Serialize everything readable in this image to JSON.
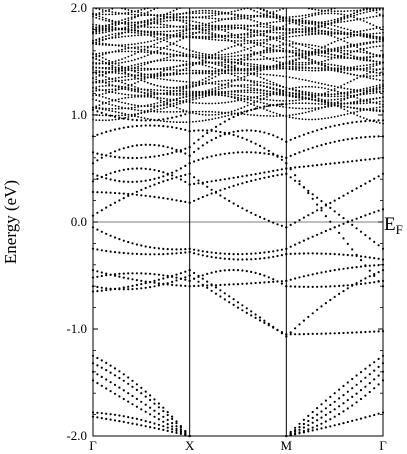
{
  "chart_data": {
    "type": "scatter",
    "title": "",
    "ylabel": "Energy (eV)",
    "xlabel": "",
    "ylim": [
      -2.0,
      2.0
    ],
    "y_ticks": [
      -2.0,
      -1.0,
      0.0,
      1.0,
      2.0
    ],
    "y_tick_labels": [
      "-2.0",
      "-1.0",
      "0.0",
      "1.0",
      "2.0"
    ],
    "x_range": [
      0,
      3
    ],
    "k_points": [
      {
        "label": "Γ",
        "x": 0
      },
      {
        "label": "X",
        "x": 1
      },
      {
        "label": "M",
        "x": 2
      },
      {
        "label": "Γ",
        "x": 3
      }
    ],
    "fermi_level": {
      "label": "E",
      "subscript": "F",
      "energy": 0.0
    },
    "grid": false,
    "series": [
      {
        "segment": "Γ-X",
        "values": [
          [
            0.0,
            0.06
          ],
          [
            0.5,
            0.3
          ],
          [
            1.0,
            0.45
          ]
        ]
      },
      {
        "segment": "Γ-X",
        "values": [
          [
            0.0,
            0.28
          ],
          [
            0.5,
            0.25
          ],
          [
            1.0,
            0.18
          ]
        ]
      },
      {
        "segment": "Γ-X",
        "values": [
          [
            0.0,
            0.38
          ],
          [
            0.5,
            0.5
          ],
          [
            1.0,
            0.35
          ]
        ]
      },
      {
        "segment": "Γ-X",
        "values": [
          [
            0.0,
            0.45
          ],
          [
            0.5,
            0.38
          ],
          [
            1.0,
            0.55
          ]
        ]
      },
      {
        "segment": "Γ-X",
        "values": [
          [
            0.0,
            0.55
          ],
          [
            0.5,
            0.72
          ],
          [
            1.0,
            0.62
          ]
        ]
      },
      {
        "segment": "Γ-X",
        "values": [
          [
            0.0,
            0.65
          ],
          [
            0.5,
            0.6
          ],
          [
            1.0,
            0.7
          ]
        ]
      },
      {
        "segment": "Γ-X",
        "values": [
          [
            0.0,
            0.8
          ],
          [
            0.5,
            0.9
          ],
          [
            1.0,
            0.85
          ]
        ]
      },
      {
        "segment": "Γ-X",
        "values": [
          [
            0.0,
            1.05
          ],
          [
            0.5,
            0.95
          ],
          [
            1.0,
            1.02
          ]
        ]
      },
      {
        "segment": "Γ-X",
        "values": [
          [
            0.0,
            -0.05
          ],
          [
            0.5,
            -0.22
          ],
          [
            1.0,
            -0.25
          ]
        ]
      },
      {
        "segment": "Γ-X",
        "values": [
          [
            0.0,
            -0.25
          ],
          [
            0.5,
            -0.3
          ],
          [
            1.0,
            -0.28
          ]
        ]
      },
      {
        "segment": "Γ-X",
        "values": [
          [
            0.0,
            -0.45
          ],
          [
            0.5,
            -0.55
          ],
          [
            1.0,
            -0.6
          ]
        ]
      },
      {
        "segment": "Γ-X",
        "values": [
          [
            0.0,
            -0.52
          ],
          [
            0.5,
            -0.48
          ],
          [
            1.0,
            -0.55
          ]
        ]
      },
      {
        "segment": "Γ-X",
        "values": [
          [
            0.0,
            -0.6
          ],
          [
            0.5,
            -0.62
          ],
          [
            1.0,
            -0.5
          ]
        ]
      },
      {
        "segment": "Γ-X",
        "values": [
          [
            0.0,
            -0.65
          ],
          [
            0.5,
            -0.58
          ],
          [
            1.0,
            -0.45
          ]
        ]
      },
      {
        "segment": "Γ-X",
        "values": [
          [
            0.0,
            -1.25
          ],
          [
            0.5,
            -1.55
          ],
          [
            1.0,
            -2.0
          ]
        ]
      },
      {
        "segment": "Γ-X",
        "values": [
          [
            0.0,
            -1.32
          ],
          [
            0.5,
            -1.6
          ],
          [
            1.0,
            -2.0
          ]
        ]
      },
      {
        "segment": "Γ-X",
        "values": [
          [
            0.0,
            -1.4
          ],
          [
            0.5,
            -1.68
          ],
          [
            1.0,
            -2.0
          ]
        ]
      },
      {
        "segment": "Γ-X",
        "values": [
          [
            0.0,
            -1.48
          ],
          [
            0.5,
            -1.75
          ],
          [
            1.0,
            -2.0
          ]
        ]
      },
      {
        "segment": "Γ-X",
        "values": [
          [
            0.0,
            -1.78
          ],
          [
            0.5,
            -1.85
          ],
          [
            1.0,
            -2.0
          ]
        ]
      },
      {
        "segment": "Γ-X",
        "values": [
          [
            0.0,
            -1.82
          ],
          [
            0.5,
            -1.9
          ],
          [
            1.0,
            -2.0
          ]
        ]
      },
      {
        "segment": "X-M",
        "values": [
          [
            1.0,
            0.45
          ],
          [
            1.5,
            0.15
          ],
          [
            2.0,
            -0.05
          ]
        ]
      },
      {
        "segment": "X-M",
        "values": [
          [
            1.0,
            0.18
          ],
          [
            1.5,
            0.35
          ],
          [
            2.0,
            0.45
          ]
        ]
      },
      {
        "segment": "X-M",
        "values": [
          [
            1.0,
            0.35
          ],
          [
            1.5,
            0.42
          ],
          [
            2.0,
            0.5
          ]
        ]
      },
      {
        "segment": "X-M",
        "values": [
          [
            1.0,
            0.55
          ],
          [
            1.5,
            0.65
          ],
          [
            2.0,
            0.6
          ]
        ]
      },
      {
        "segment": "X-M",
        "values": [
          [
            1.0,
            0.62
          ],
          [
            1.5,
            0.85
          ],
          [
            2.0,
            0.75
          ]
        ]
      },
      {
        "segment": "X-M",
        "values": [
          [
            1.0,
            0.7
          ],
          [
            1.5,
            1.0
          ],
          [
            2.0,
            1.1
          ]
        ]
      },
      {
        "segment": "X-M",
        "values": [
          [
            1.0,
            0.85
          ],
          [
            1.5,
            0.8
          ],
          [
            2.0,
            0.55
          ]
        ]
      },
      {
        "segment": "X-M",
        "values": [
          [
            1.0,
            -0.25
          ],
          [
            1.5,
            -0.3
          ],
          [
            2.0,
            -0.25
          ]
        ]
      },
      {
        "segment": "X-M",
        "values": [
          [
            1.0,
            -0.28
          ],
          [
            1.5,
            -0.35
          ],
          [
            2.0,
            -0.3
          ]
        ]
      },
      {
        "segment": "X-M",
        "values": [
          [
            1.0,
            -0.6
          ],
          [
            1.5,
            -0.58
          ],
          [
            2.0,
            -0.55
          ]
        ]
      },
      {
        "segment": "X-M",
        "values": [
          [
            1.0,
            -0.55
          ],
          [
            1.5,
            -0.45
          ],
          [
            2.0,
            -0.6
          ]
        ]
      },
      {
        "segment": "X-M",
        "values": [
          [
            1.0,
            -0.5
          ],
          [
            1.5,
            -0.8
          ],
          [
            2.0,
            -1.05
          ]
        ]
      },
      {
        "segment": "X-M",
        "values": [
          [
            1.0,
            -0.45
          ],
          [
            1.5,
            -0.75
          ],
          [
            2.0,
            -1.07
          ]
        ]
      },
      {
        "segment": "M-Γ",
        "values": [
          [
            2.0,
            -0.05
          ],
          [
            2.5,
            0.2
          ],
          [
            3.0,
            0.45
          ]
        ]
      },
      {
        "segment": "M-Γ",
        "values": [
          [
            2.0,
            0.45
          ],
          [
            2.5,
            0.1
          ],
          [
            3.0,
            -0.25
          ]
        ]
      },
      {
        "segment": "M-Γ",
        "values": [
          [
            2.0,
            0.5
          ],
          [
            2.5,
            0.55
          ],
          [
            3.0,
            0.6
          ]
        ]
      },
      {
        "segment": "M-Γ",
        "values": [
          [
            2.0,
            0.6
          ],
          [
            2.5,
            0.75
          ],
          [
            3.0,
            0.8
          ]
        ]
      },
      {
        "segment": "M-Γ",
        "values": [
          [
            2.0,
            0.75
          ],
          [
            2.5,
            0.9
          ],
          [
            3.0,
            0.95
          ]
        ]
      },
      {
        "segment": "M-Γ",
        "values": [
          [
            2.0,
            0.55
          ],
          [
            2.5,
            -0.05
          ],
          [
            3.0,
            -0.6
          ]
        ]
      },
      {
        "segment": "M-Γ",
        "values": [
          [
            2.0,
            -0.25
          ],
          [
            2.5,
            -0.05
          ],
          [
            3.0,
            0.12
          ]
        ]
      },
      {
        "segment": "M-Γ",
        "values": [
          [
            2.0,
            -0.3
          ],
          [
            2.5,
            -0.3
          ],
          [
            3.0,
            -0.35
          ]
        ]
      },
      {
        "segment": "M-Γ",
        "values": [
          [
            2.0,
            -0.55
          ],
          [
            2.5,
            -0.45
          ],
          [
            3.0,
            -0.4
          ]
        ]
      },
      {
        "segment": "M-Γ",
        "values": [
          [
            2.0,
            -0.6
          ],
          [
            2.5,
            -0.6
          ],
          [
            3.0,
            -0.55
          ]
        ]
      },
      {
        "segment": "M-Γ",
        "values": [
          [
            2.0,
            -1.05
          ],
          [
            2.5,
            -1.04
          ],
          [
            3.0,
            -1.02
          ]
        ]
      },
      {
        "segment": "M-Γ",
        "values": [
          [
            2.0,
            -1.07
          ],
          [
            2.5,
            -0.7
          ],
          [
            3.0,
            -0.45
          ]
        ]
      },
      {
        "segment": "M-Γ",
        "values": [
          [
            2.0,
            -2.0
          ],
          [
            2.5,
            -1.6
          ],
          [
            3.0,
            -1.25
          ]
        ]
      },
      {
        "segment": "M-Γ",
        "values": [
          [
            2.0,
            -2.0
          ],
          [
            2.5,
            -1.68
          ],
          [
            3.0,
            -1.32
          ]
        ]
      },
      {
        "segment": "M-Γ",
        "values": [
          [
            2.0,
            -2.0
          ],
          [
            2.5,
            -1.75
          ],
          [
            3.0,
            -1.4
          ]
        ]
      },
      {
        "segment": "M-Γ",
        "values": [
          [
            2.0,
            -2.0
          ],
          [
            2.5,
            -1.82
          ],
          [
            3.0,
            -1.48
          ]
        ]
      },
      {
        "segment": "M-Γ",
        "values": [
          [
            2.0,
            -2.0
          ],
          [
            2.5,
            -1.9
          ],
          [
            3.0,
            -1.78
          ]
        ]
      }
    ]
  }
}
